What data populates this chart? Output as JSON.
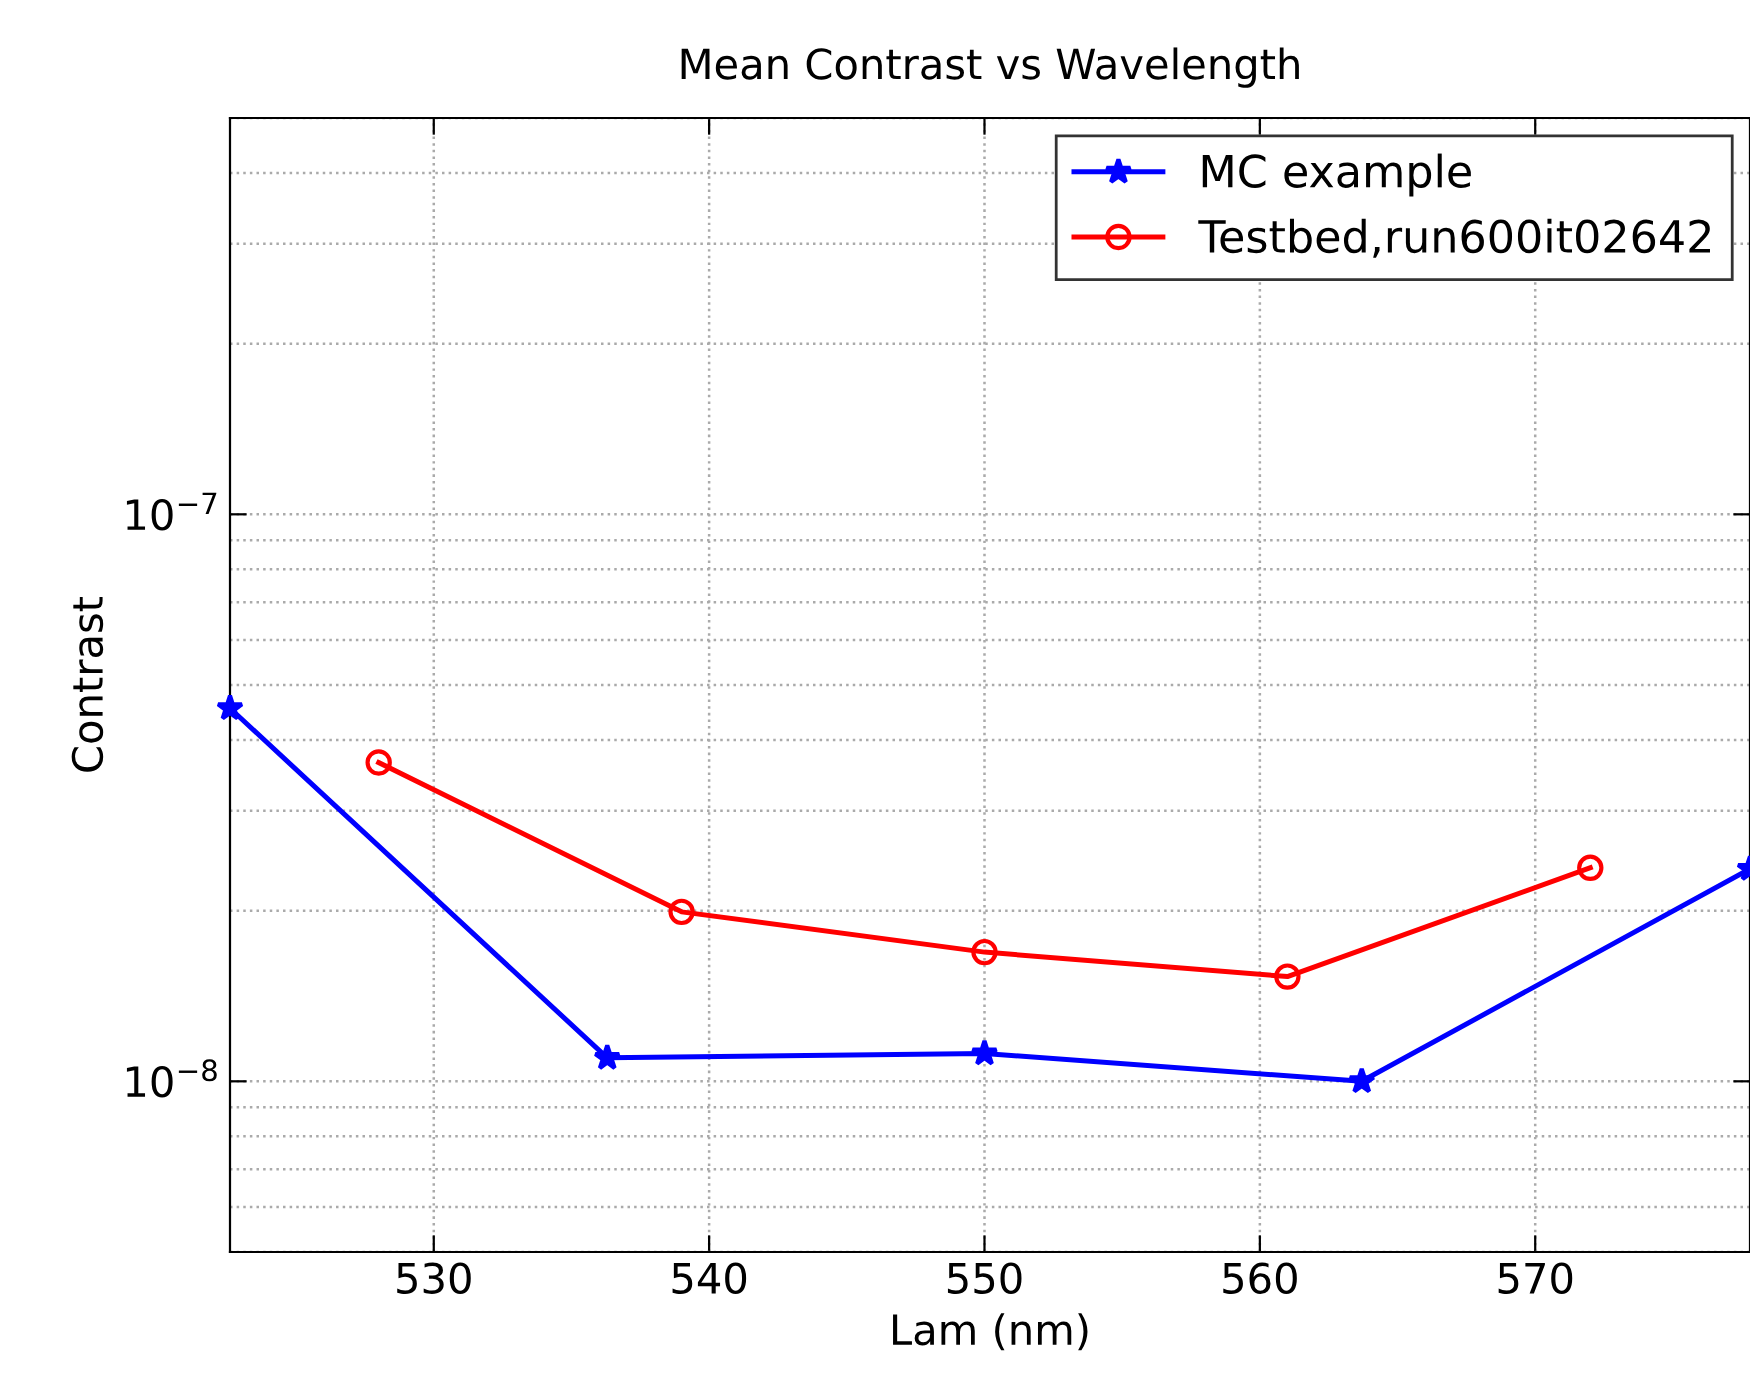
{
  "chart_data": {
    "type": "line",
    "title": "Mean Contrast vs Wavelength",
    "xlabel": "Lam (nm)",
    "ylabel": "Contrast",
    "log": "y",
    "grid": true,
    "legend": "top right",
    "xlim": [
      522.6,
      577.8
    ],
    "xticks": [
      530,
      540,
      550,
      560,
      570
    ],
    "ylim": [
      5e-09,
      5e-07
    ],
    "yticks": [
      {
        "value": 1e-08,
        "label": "10$^{−8}$"
      },
      {
        "value": 1e-07,
        "label": "10$^{−7}$"
      }
    ],
    "series": [
      {
        "name": "MC example",
        "color": "#0000ff",
        "marker": "star",
        "x": [
          522.6,
          536.3,
          550,
          563.7,
          577.8
        ],
        "values": [
          4.55e-08,
          1.1e-08,
          1.12e-08,
          1e-08,
          2.37e-08
        ]
      },
      {
        "name": "Testbed,run600it02642",
        "color": "#ff0000",
        "marker": "circle",
        "x": [
          528,
          539,
          550,
          561,
          572
        ],
        "values": [
          3.65e-08,
          1.99e-08,
          1.69e-08,
          1.53e-08,
          2.38e-08
        ]
      }
    ]
  }
}
